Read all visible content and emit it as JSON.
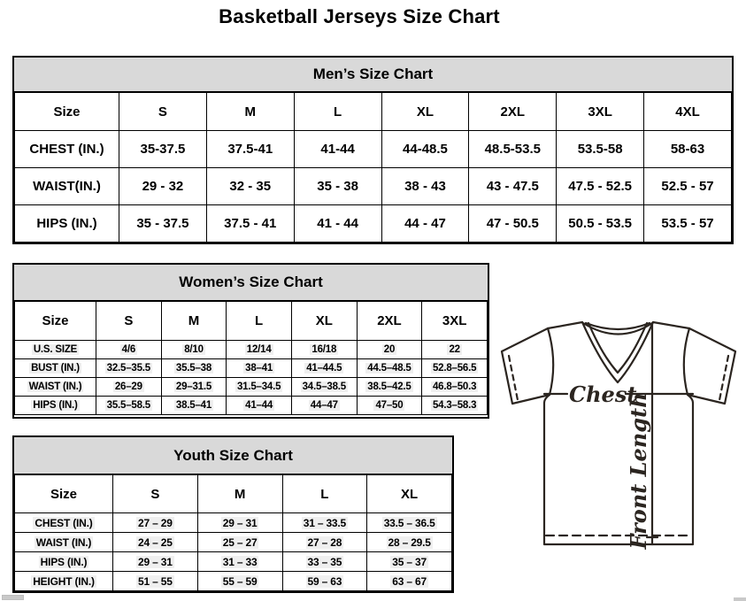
{
  "title": "Basketball Jerseys Size Chart",
  "mens": {
    "caption": "Men’s Size Chart",
    "columns": [
      "Size",
      "S",
      "M",
      "L",
      "XL",
      "2XL",
      "3XL",
      "4XL"
    ],
    "rows": [
      {
        "label": "CHEST (IN.)",
        "values": [
          "35-37.5",
          "37.5-41",
          "41-44",
          "44-48.5",
          "48.5-53.5",
          "53.5-58",
          "58-63"
        ]
      },
      {
        "label": "WAIST(IN.)",
        "values": [
          "29 - 32",
          "32 - 35",
          "35 - 38",
          "38 - 43",
          "43 - 47.5",
          "47.5 - 52.5",
          "52.5 - 57"
        ]
      },
      {
        "label": "HIPS (IN.)",
        "values": [
          "35 - 37.5",
          "37.5 - 41",
          "41 - 44",
          "44 - 47",
          "47 - 50.5",
          "50.5 - 53.5",
          "53.5 - 57"
        ]
      }
    ]
  },
  "womens": {
    "caption": "Women’s Size Chart",
    "columns": [
      "Size",
      "S",
      "M",
      "L",
      "XL",
      "2XL",
      "3XL"
    ],
    "rows": [
      {
        "label": "U.S. SIZE",
        "values": [
          "4/6",
          "8/10",
          "12/14",
          "16/18",
          "20",
          "22"
        ]
      },
      {
        "label": "BUST (IN.)",
        "values": [
          "32.5–35.5",
          "35.5–38",
          "38–41",
          "41–44.5",
          "44.5–48.5",
          "52.8–56.5"
        ]
      },
      {
        "label": "WAIST (IN.)",
        "values": [
          "26–29",
          "29–31.5",
          "31.5–34.5",
          "34.5–38.5",
          "38.5–42.5",
          "46.8–50.3"
        ]
      },
      {
        "label": "HIPS (IN.)",
        "values": [
          "35.5–58.5",
          "38.5–41",
          "41–44",
          "44–47",
          "47–50",
          "54.3–58.3"
        ]
      }
    ]
  },
  "youth": {
    "caption": "Youth Size Chart",
    "columns": [
      "Size",
      "S",
      "M",
      "L",
      "XL"
    ],
    "rows": [
      {
        "label": "CHEST (IN.)",
        "values": [
          "27 – 29",
          "29 – 31",
          "31 – 33.5",
          "33.5 – 36.5"
        ]
      },
      {
        "label": "WAIST (IN.)",
        "values": [
          "24 – 25",
          "25 – 27",
          "27 – 28",
          "28 – 29.5"
        ]
      },
      {
        "label": "HIPS (IN.)",
        "values": [
          "29 – 31",
          "31 – 33",
          "33 – 35",
          "35 – 37"
        ]
      },
      {
        "label": "HEIGHT (IN.)",
        "values": [
          "51 – 55",
          "55 – 59",
          "59 – 63",
          "63 – 67"
        ]
      }
    ]
  },
  "diagram": {
    "chest_label": "Chest",
    "front_length_label": "Front Length"
  },
  "colors": {
    "caption_bg": "#d9d9d9",
    "border": "#000000",
    "diagram_stroke": "#2b2520",
    "scrollbar": "#c9c9c9"
  }
}
